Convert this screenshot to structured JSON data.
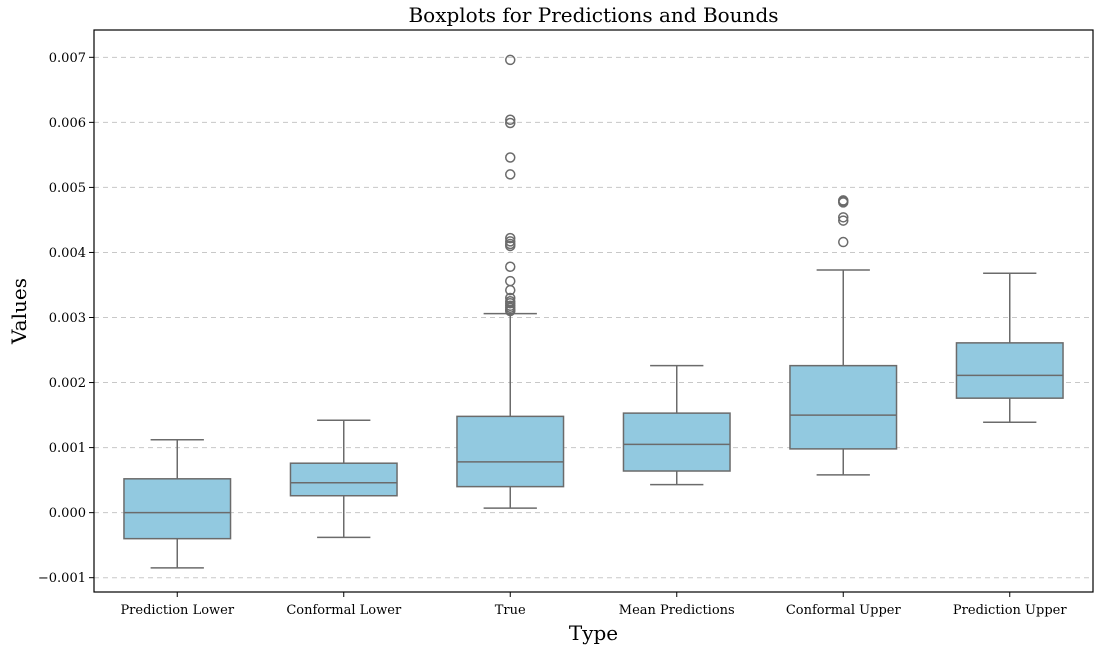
{
  "chart_data": {
    "type": "boxplot",
    "title": "Boxplots for Predictions and Bounds",
    "xlabel": "Type",
    "ylabel": "Values",
    "ylim": [
      -0.00122,
      0.00742
    ],
    "yticks": [
      -0.001,
      0.0,
      0.001,
      0.002,
      0.003,
      0.004,
      0.005,
      0.006,
      0.007
    ],
    "ytick_labels": [
      "−0.001",
      "0.000",
      "0.001",
      "0.002",
      "0.003",
      "0.004",
      "0.005",
      "0.006",
      "0.007"
    ],
    "grid": "y-dashed",
    "box_color": "#92c9e0",
    "line_color": "#6b6b6b",
    "categories": [
      "Prediction Lower",
      "Conformal Lower",
      "True",
      "Mean Predictions",
      "Conformal Upper",
      "Prediction Upper"
    ],
    "boxes": [
      {
        "category": "Prediction Lower",
        "whislo": -0.00085,
        "q1": -0.0004,
        "median": 0.0,
        "q3": 0.00052,
        "whishi": 0.00112,
        "fliers": []
      },
      {
        "category": "Conformal Lower",
        "whislo": -0.00038,
        "q1": 0.00026,
        "median": 0.00046,
        "q3": 0.00076,
        "whishi": 0.00142,
        "fliers": []
      },
      {
        "category": "True",
        "whislo": 7e-05,
        "q1": 0.0004,
        "median": 0.00078,
        "q3": 0.00148,
        "whishi": 0.00306,
        "fliers": [
          0.0031,
          0.00312,
          0.00315,
          0.00318,
          0.00322,
          0.00325,
          0.0033,
          0.00342,
          0.00356,
          0.00378,
          0.0041,
          0.00413,
          0.00417,
          0.00422,
          0.0052,
          0.00546,
          0.00599,
          0.00604,
          0.00696
        ]
      },
      {
        "category": "Mean Predictions",
        "whislo": 0.00043,
        "q1": 0.00064,
        "median": 0.00105,
        "q3": 0.00153,
        "whishi": 0.00226,
        "fliers": []
      },
      {
        "category": "Conformal Upper",
        "whislo": 0.00058,
        "q1": 0.00098,
        "median": 0.0015,
        "q3": 0.00226,
        "whishi": 0.00373,
        "fliers": [
          0.00416,
          0.00449,
          0.00454,
          0.00477,
          0.00479,
          0.0048
        ]
      },
      {
        "category": "Prediction Upper",
        "whislo": 0.00139,
        "q1": 0.00176,
        "median": 0.00211,
        "q3": 0.00261,
        "whishi": 0.00368,
        "fliers": []
      }
    ]
  }
}
